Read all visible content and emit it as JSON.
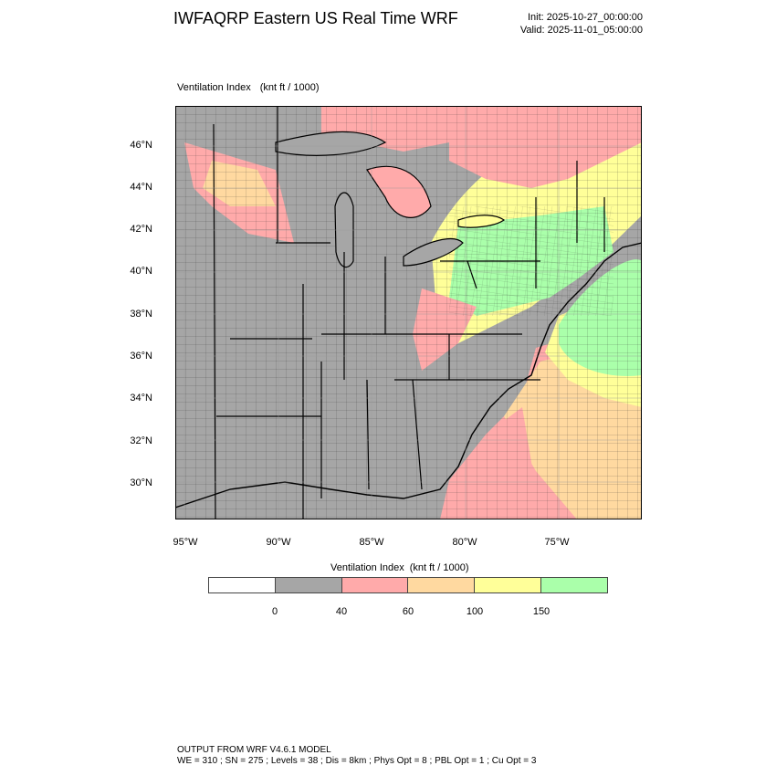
{
  "header": {
    "title": "IWFAQRP Eastern US Real Time WRF",
    "init": "Init: 2025-10-27_00:00:00",
    "valid": "Valid: 2025-11-01_05:00:00"
  },
  "map": {
    "field_label": "Ventilation Index",
    "field_units": "(knt ft / 1000)",
    "lat_labels": [
      "46°N",
      "44°N",
      "42°N",
      "40°N",
      "38°N",
      "36°N",
      "34°N",
      "32°N",
      "30°N"
    ],
    "lon_labels": [
      "95°W",
      "90°W",
      "85°W",
      "80°W",
      "75°W"
    ]
  },
  "colorbar": {
    "title": "Ventilation Index",
    "units": "(knt ft / 1000)",
    "colors": [
      "#ffffff",
      "#a6a6a6",
      "#ffaaaa",
      "#ffd9a0",
      "#ffff99",
      "#aaffaa"
    ],
    "labels": [
      "0",
      "40",
      "60",
      "100",
      "150"
    ]
  },
  "footer": {
    "line1": "OUTPUT FROM WRF V4.6.1 MODEL",
    "line2": "WE = 310 ; SN = 275 ; Levels = 38 ; Dis = 8km ; Phys Opt = 8 ; PBL Opt = 1 ; Cu Opt = 3"
  }
}
